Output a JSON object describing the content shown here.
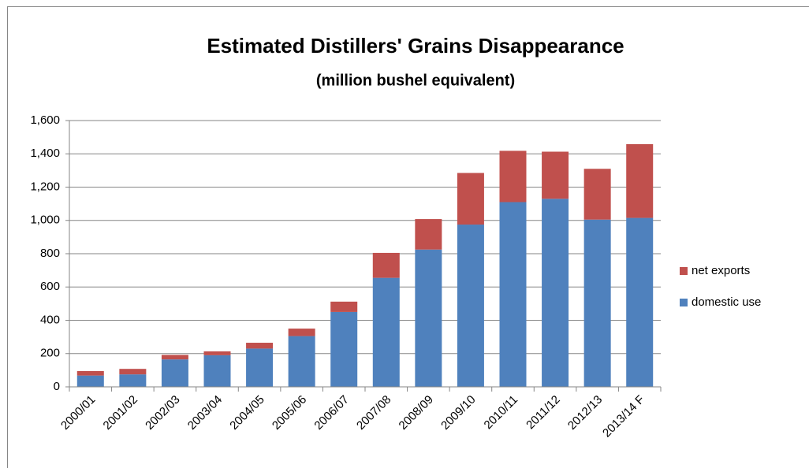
{
  "chart_data": {
    "type": "stacked_bar",
    "title": "Estimated Distillers' Grains Disappearance",
    "subtitle": "(million bushel equivalent)",
    "categories": [
      "2000/01",
      "2001/02",
      "2002/03",
      "2003/04",
      "2004/05",
      "2005/06",
      "2006/07",
      "2007/08",
      "2008/09",
      "2009/10",
      "2010/11",
      "2011/12",
      "2012/13",
      "2013/14 F"
    ],
    "series": [
      {
        "name": "domestic use",
        "color": "#4f81bd",
        "values": [
          68,
          75,
          165,
          190,
          230,
          305,
          450,
          655,
          825,
          975,
          1110,
          1130,
          1005,
          1015
        ]
      },
      {
        "name": "net exports",
        "color": "#c0504d",
        "values": [
          27,
          33,
          27,
          23,
          35,
          45,
          62,
          150,
          183,
          310,
          308,
          283,
          305,
          443
        ]
      }
    ],
    "ylim": [
      0,
      1600
    ],
    "yticks": [
      0,
      200,
      400,
      600,
      800,
      {
        "value": 1000,
        "label": "1,000"
      },
      {
        "value": 1200,
        "label": "1,200"
      },
      {
        "value": 1400,
        "label": "1,400"
      },
      {
        "value": 1600,
        "label": "1,600"
      }
    ],
    "grid": true,
    "legend": "right"
  }
}
